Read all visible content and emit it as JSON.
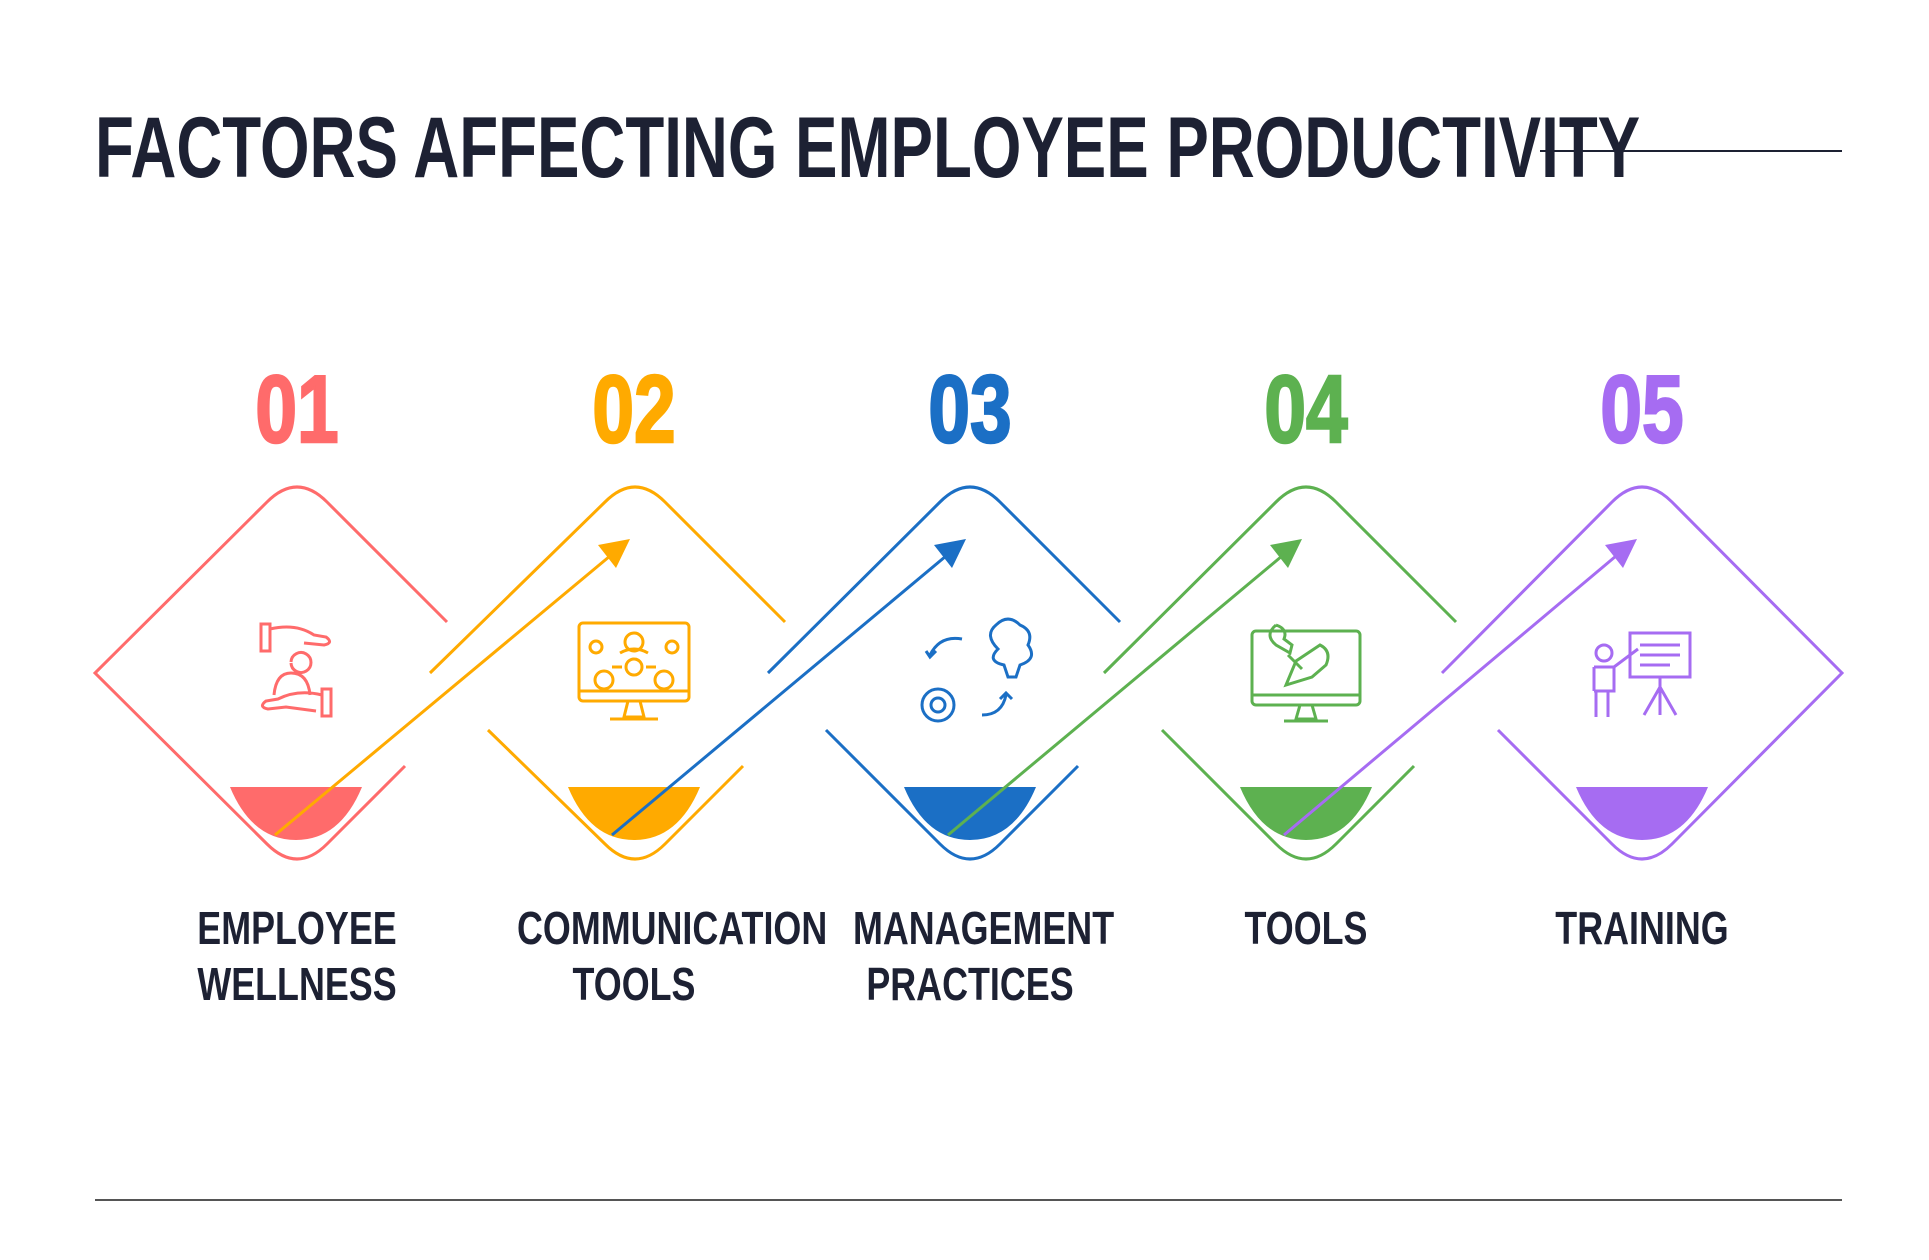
{
  "title": "FACTORS AFFECTING EMPLOYEE PRODUCTIVITY",
  "steps": [
    {
      "number": "01",
      "label": "EMPLOYEE\nWELLNESS",
      "color": "#ff6b6b",
      "icon": "hands-holding-person-icon"
    },
    {
      "number": "02",
      "label": "COMMUNICATION\nTOOLS",
      "color": "#ffaa00",
      "icon": "monitor-network-icon"
    },
    {
      "number": "03",
      "label": "MANAGEMENT\nPRACTICES",
      "color": "#1b6fc5",
      "icon": "brain-gear-cycle-icon"
    },
    {
      "number": "04",
      "label": "TOOLS",
      "color": "#5db150",
      "icon": "monitor-wrench-icon"
    },
    {
      "number": "05",
      "label": "TRAINING",
      "color": "#a66cf2",
      "icon": "presenter-board-icon"
    }
  ],
  "colors": {
    "text": "#1d2133",
    "rule": "#555555"
  }
}
